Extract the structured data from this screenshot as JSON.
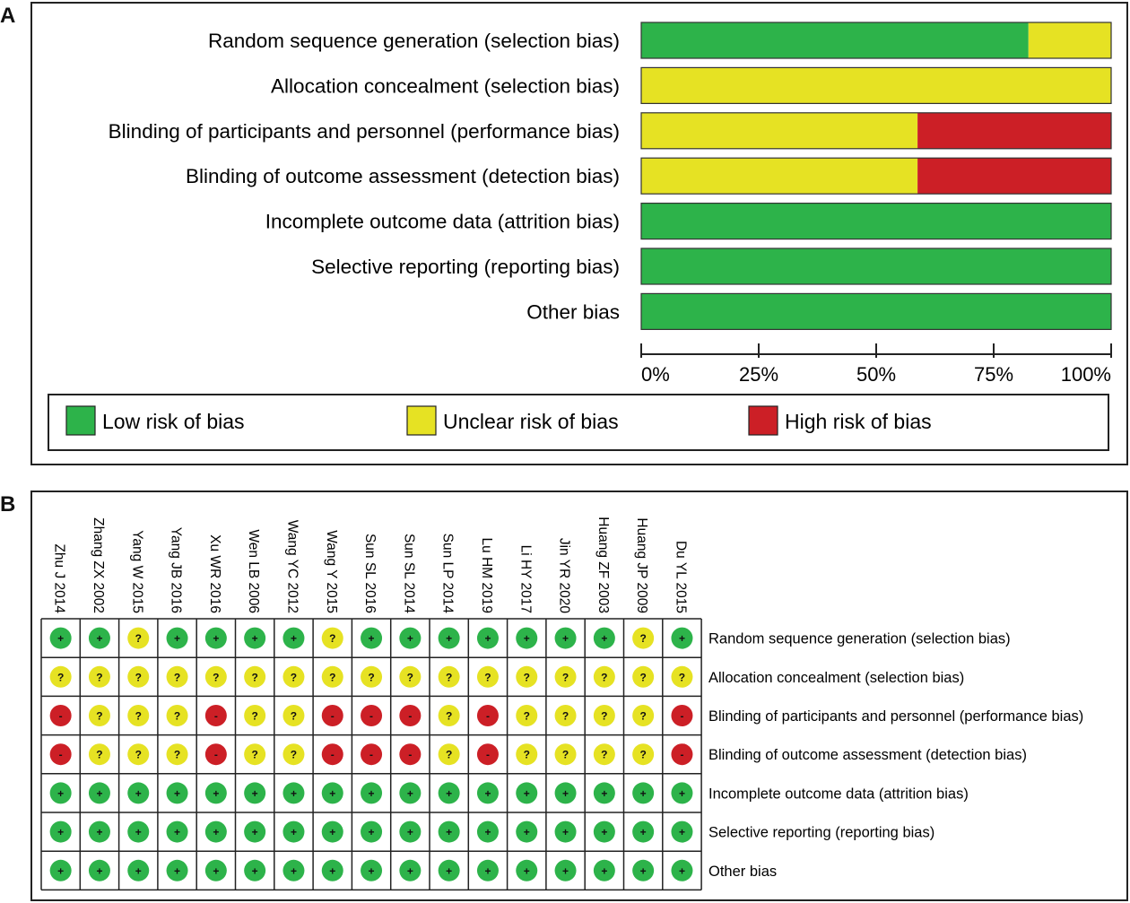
{
  "panel_a": {
    "letter": "A"
  },
  "panel_b": {
    "letter": "B"
  },
  "colors": {
    "low": "#2db34a",
    "unclear": "#e6e223",
    "high": "#cc1f26"
  },
  "symbols": {
    "low": "+",
    "unclear": "?",
    "high": "-"
  },
  "legend": {
    "low": "Low risk of bias",
    "unclear": "Unclear risk of bias",
    "high": "High risk of bias"
  },
  "chart_data": [
    {
      "type": "bar",
      "stacked": true,
      "orientation": "horizontal",
      "categories": [
        "Random sequence generation (selection bias)",
        "Allocation concealment (selection bias)",
        "Blinding of participants and personnel (performance bias)",
        "Blinding of outcome assessment (detection bias)",
        "Incomplete outcome data (attrition bias)",
        "Selective reporting (reporting bias)",
        "Other bias"
      ],
      "series": [
        {
          "name": "Low risk of bias",
          "key": "low",
          "values": [
            82.4,
            0,
            0,
            0,
            100,
            100,
            100
          ]
        },
        {
          "name": "Unclear risk of bias",
          "key": "unclear",
          "values": [
            17.6,
            100,
            58.8,
            58.8,
            0,
            0,
            0
          ]
        },
        {
          "name": "High risk of bias",
          "key": "high",
          "values": [
            0,
            0,
            41.2,
            41.2,
            0,
            0,
            0
          ]
        }
      ],
      "xlim": [
        0,
        100
      ],
      "xticks": [
        "0%",
        "25%",
        "50%",
        "75%",
        "100%"
      ],
      "legend_position": "bottom"
    },
    {
      "type": "table",
      "studies": [
        "Zhu J 2014",
        "Zhang ZX 2002",
        "Yang W 2015",
        "Yang JB 2016",
        "Xu WR 2016",
        "Wen LB 2006",
        "Wang YC 2012",
        "Wang Y 2015",
        "Sun SL 2016",
        "Sun SL 2014",
        "Sun LP 2014",
        "Lu HM 2019",
        "Li HY 2017",
        "Jin YR 2020",
        "Huang ZF 2003",
        "Huang JP 2009",
        "Du YL 2015"
      ],
      "domains": [
        "Random sequence generation (selection bias)",
        "Allocation concealment (selection bias)",
        "Blinding of participants and personnel (performance bias)",
        "Blinding of outcome assessment (detection bias)",
        "Incomplete outcome data (attrition bias)",
        "Selective reporting (reporting bias)",
        "Other bias"
      ],
      "judgements": [
        [
          "low",
          "low",
          "unclear",
          "low",
          "low",
          "low",
          "low",
          "unclear",
          "low",
          "low",
          "low",
          "low",
          "low",
          "low",
          "low",
          "unclear",
          "low"
        ],
        [
          "unclear",
          "unclear",
          "unclear",
          "unclear",
          "unclear",
          "unclear",
          "unclear",
          "unclear",
          "unclear",
          "unclear",
          "unclear",
          "unclear",
          "unclear",
          "unclear",
          "unclear",
          "unclear",
          "unclear"
        ],
        [
          "high",
          "unclear",
          "unclear",
          "unclear",
          "high",
          "unclear",
          "unclear",
          "high",
          "high",
          "high",
          "unclear",
          "high",
          "unclear",
          "unclear",
          "unclear",
          "unclear",
          "high"
        ],
        [
          "high",
          "unclear",
          "unclear",
          "unclear",
          "high",
          "unclear",
          "unclear",
          "high",
          "high",
          "high",
          "unclear",
          "high",
          "unclear",
          "unclear",
          "unclear",
          "unclear",
          "high"
        ],
        [
          "low",
          "low",
          "low",
          "low",
          "low",
          "low",
          "low",
          "low",
          "low",
          "low",
          "low",
          "low",
          "low",
          "low",
          "low",
          "low",
          "low"
        ],
        [
          "low",
          "low",
          "low",
          "low",
          "low",
          "low",
          "low",
          "low",
          "low",
          "low",
          "low",
          "low",
          "low",
          "low",
          "low",
          "low",
          "low"
        ],
        [
          "low",
          "low",
          "low",
          "low",
          "low",
          "low",
          "low",
          "low",
          "low",
          "low",
          "low",
          "low",
          "low",
          "low",
          "low",
          "low",
          "low"
        ]
      ]
    }
  ]
}
